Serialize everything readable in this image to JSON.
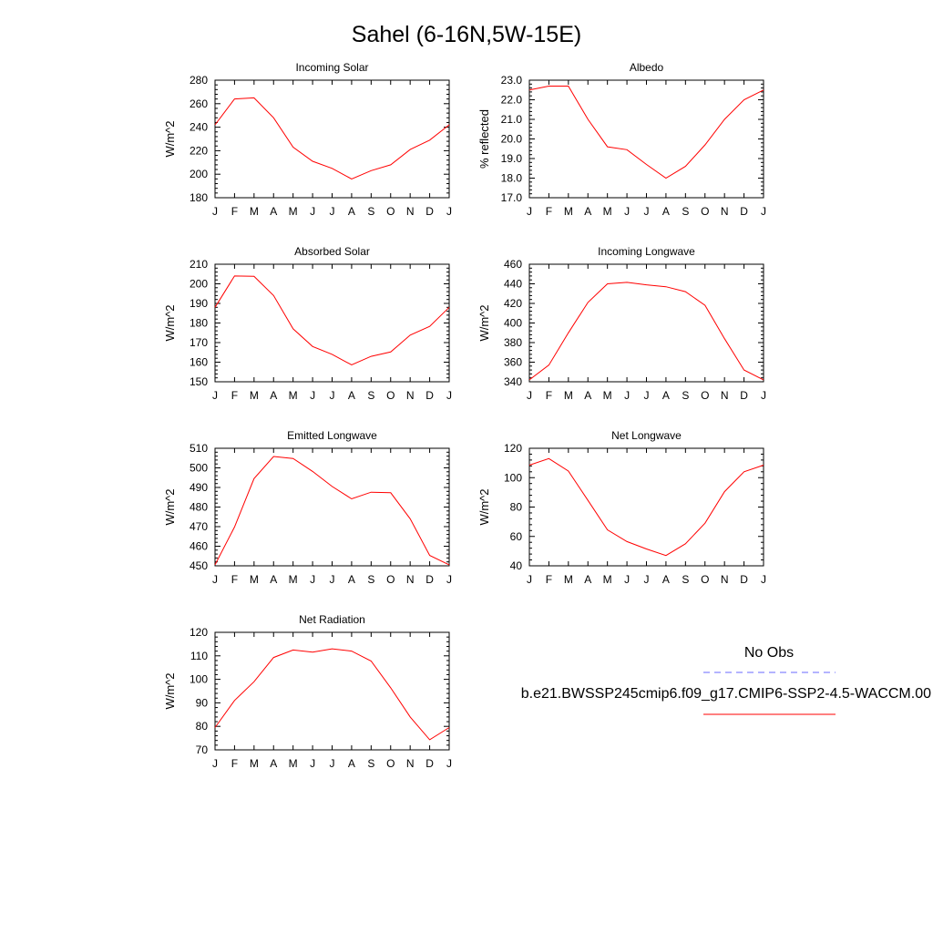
{
  "figure_title": "Sahel (6-16N,5W-15E)",
  "legend": {
    "entries": [
      {
        "label": "No Obs",
        "color": "#6a6aff",
        "style": "dashed"
      },
      {
        "label": "b.e21.BWSSP245cmip6.f09_g17.CMIP6-SSP2-4.5-WACCM.00",
        "color": "#ff0000",
        "style": "solid"
      }
    ]
  },
  "chart_data": [
    {
      "type": "line",
      "title": "Incoming Solar",
      "ylabel": "W/m^2",
      "x": [
        "J",
        "F",
        "M",
        "A",
        "M",
        "J",
        "J",
        "A",
        "S",
        "O",
        "N",
        "D",
        "J"
      ],
      "ylim": [
        180,
        280
      ],
      "yticks": [
        180,
        200,
        220,
        240,
        260,
        280
      ],
      "yminor": 4,
      "series": [
        {
          "color": "#ff0000",
          "values": [
            242,
            264,
            265,
            248,
            223,
            211,
            205,
            196,
            203,
            208,
            221,
            229,
            242
          ]
        }
      ]
    },
    {
      "type": "line",
      "title": "Albedo",
      "ylabel": "% reflected",
      "x": [
        "J",
        "F",
        "M",
        "A",
        "M",
        "J",
        "J",
        "A",
        "S",
        "O",
        "N",
        "D",
        "J"
      ],
      "ylim": [
        17.0,
        23.0
      ],
      "yticks": [
        17.0,
        18.0,
        19.0,
        20.0,
        21.0,
        22.0,
        23.0
      ],
      "ydecimals": 1,
      "yminor": 4,
      "series": [
        {
          "color": "#ff0000",
          "values": [
            22.5,
            22.7,
            22.7,
            21.0,
            19.6,
            19.45,
            18.7,
            18.0,
            18.6,
            19.7,
            21.0,
            22.0,
            22.5
          ]
        }
      ]
    },
    {
      "type": "line",
      "title": "Absorbed Solar",
      "ylabel": "W/m^2",
      "x": [
        "J",
        "F",
        "M",
        "A",
        "M",
        "J",
        "J",
        "A",
        "S",
        "O",
        "N",
        "D",
        "J"
      ],
      "ylim": [
        150,
        210
      ],
      "yticks": [
        150,
        160,
        170,
        180,
        190,
        200,
        210
      ],
      "yminor": 4,
      "series": [
        {
          "color": "#ff0000",
          "values": [
            188,
            204,
            203.8,
            194,
            177,
            168,
            164,
            158.6,
            163,
            165.2,
            173.8,
            178.3,
            188
          ]
        }
      ]
    },
    {
      "type": "line",
      "title": "Incoming Longwave",
      "ylabel": "W/m^2",
      "x": [
        "J",
        "F",
        "M",
        "A",
        "M",
        "J",
        "J",
        "A",
        "S",
        "O",
        "N",
        "D",
        "J"
      ],
      "ylim": [
        340,
        460
      ],
      "yticks": [
        340,
        360,
        380,
        400,
        420,
        440,
        460
      ],
      "yminor": 4,
      "series": [
        {
          "color": "#ff0000",
          "values": [
            342,
            357,
            390,
            421,
            440,
            441.5,
            439,
            437,
            432,
            418,
            384,
            352,
            342
          ]
        }
      ]
    },
    {
      "type": "line",
      "title": "Emitted Longwave",
      "ylabel": "W/m^2",
      "x": [
        "J",
        "F",
        "M",
        "A",
        "M",
        "J",
        "J",
        "A",
        "S",
        "O",
        "N",
        "D",
        "J"
      ],
      "ylim": [
        450,
        510
      ],
      "yticks": [
        450,
        460,
        470,
        480,
        490,
        500,
        510
      ],
      "yminor": 4,
      "series": [
        {
          "color": "#ff0000",
          "values": [
            450.5,
            469.8,
            494.5,
            505.8,
            504.8,
            498.2,
            490.5,
            484.2,
            487.6,
            487.3,
            474,
            455.3,
            450.5
          ]
        }
      ]
    },
    {
      "type": "line",
      "title": "Net Longwave",
      "ylabel": "W/m^2",
      "x": [
        "J",
        "F",
        "M",
        "A",
        "M",
        "J",
        "J",
        "A",
        "S",
        "O",
        "N",
        "D",
        "J"
      ],
      "ylim": [
        40,
        120
      ],
      "yticks": [
        40,
        60,
        80,
        100,
        120
      ],
      "yminor": 4,
      "series": [
        {
          "color": "#ff0000",
          "values": [
            108.5,
            113,
            104.5,
            84.5,
            64.5,
            56.5,
            51.5,
            47,
            55,
            69,
            90.5,
            104,
            108.5
          ]
        }
      ]
    },
    {
      "type": "line",
      "title": "Net Radiation",
      "ylabel": "W/m^2",
      "x": [
        "J",
        "F",
        "M",
        "A",
        "M",
        "J",
        "J",
        "A",
        "S",
        "O",
        "N",
        "D",
        "J"
      ],
      "ylim": [
        70,
        120
      ],
      "yticks": [
        70,
        80,
        90,
        100,
        110,
        120
      ],
      "yminor": 4,
      "series": [
        {
          "color": "#ff0000",
          "values": [
            79.5,
            91,
            99,
            109.3,
            112.5,
            111.6,
            113,
            112,
            107.8,
            96.4,
            84,
            74.3,
            79.5
          ]
        }
      ]
    }
  ]
}
